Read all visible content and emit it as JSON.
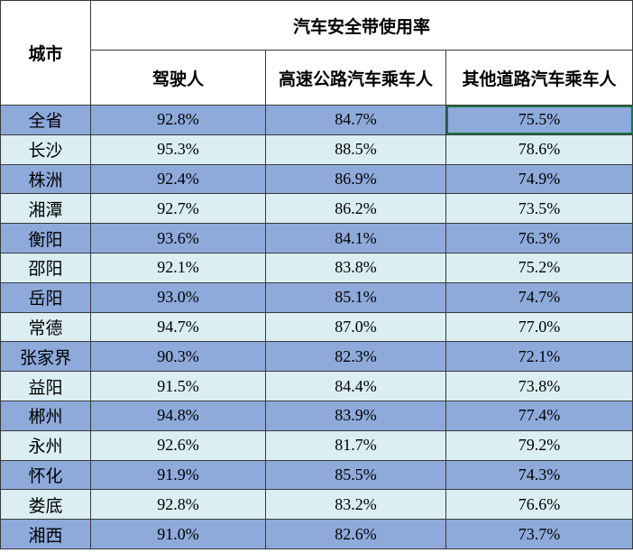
{
  "table": {
    "city_header": "城市",
    "group_header": "汽车安全带使用率",
    "columns": [
      "驾驶人",
      "高速公路汽车乘车人",
      "其他道路汽车乘车人"
    ],
    "rows": [
      {
        "city": "全省",
        "values": [
          "92.8%",
          "84.7%",
          "75.5%"
        ]
      },
      {
        "city": "长沙",
        "values": [
          "95.3%",
          "88.5%",
          "78.6%"
        ]
      },
      {
        "city": "株洲",
        "values": [
          "92.4%",
          "86.9%",
          "74.9%"
        ]
      },
      {
        "city": "湘潭",
        "values": [
          "92.7%",
          "86.2%",
          "73.5%"
        ]
      },
      {
        "city": "衡阳",
        "values": [
          "93.6%",
          "84.1%",
          "76.3%"
        ]
      },
      {
        "city": "邵阳",
        "values": [
          "92.1%",
          "83.8%",
          "75.2%"
        ]
      },
      {
        "city": "岳阳",
        "values": [
          "93.0%",
          "85.1%",
          "74.7%"
        ]
      },
      {
        "city": "常德",
        "values": [
          "94.7%",
          "87.0%",
          "77.0%"
        ]
      },
      {
        "city": "张家界",
        "values": [
          "90.3%",
          "82.3%",
          "72.1%"
        ]
      },
      {
        "city": "益阳",
        "values": [
          "91.5%",
          "84.4%",
          "73.8%"
        ]
      },
      {
        "city": "郴州",
        "values": [
          "94.8%",
          "83.9%",
          "77.4%"
        ]
      },
      {
        "city": "永州",
        "values": [
          "92.6%",
          "81.7%",
          "79.2%"
        ]
      },
      {
        "city": "怀化",
        "values": [
          "91.9%",
          "85.5%",
          "74.3%"
        ]
      },
      {
        "city": "娄底",
        "values": [
          "92.8%",
          "83.2%",
          "76.6%"
        ]
      },
      {
        "city": "湘西",
        "values": [
          "91.0%",
          "82.6%",
          "73.7%"
        ]
      }
    ]
  }
}
